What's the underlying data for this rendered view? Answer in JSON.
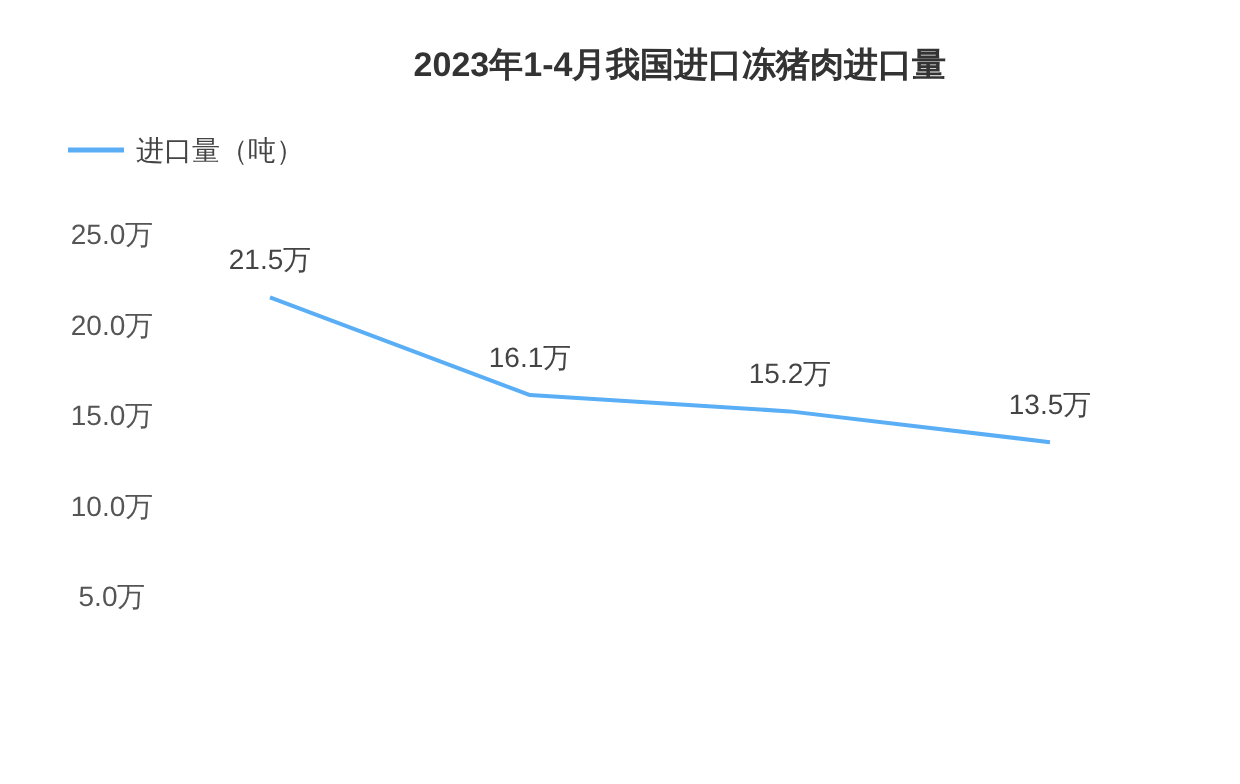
{
  "chart_data": {
    "type": "line",
    "title": "2023年1-4月我国进口冻猪肉进口量",
    "categories": [
      null,
      null,
      null,
      null
    ],
    "series": [
      {
        "name": "进口量（吨）",
        "color": "#5aaef5",
        "values": [
          21.5,
          16.1,
          15.2,
          13.5
        ],
        "value_labels": [
          "21.5万",
          "16.1万",
          "15.2万",
          "13.5万"
        ]
      }
    ],
    "ylim": [
      5,
      25
    ],
    "yticks": [
      {
        "value": 5,
        "label": "5.0万"
      },
      {
        "value": 10,
        "label": "10.0万"
      },
      {
        "value": 15,
        "label": "15.0万"
      },
      {
        "value": 20,
        "label": "20.0万"
      },
      {
        "value": 25,
        "label": "25.0万"
      }
    ],
    "legend": "top left",
    "tick_labels": "y",
    "marker": "none",
    "line_style": "solid"
  }
}
